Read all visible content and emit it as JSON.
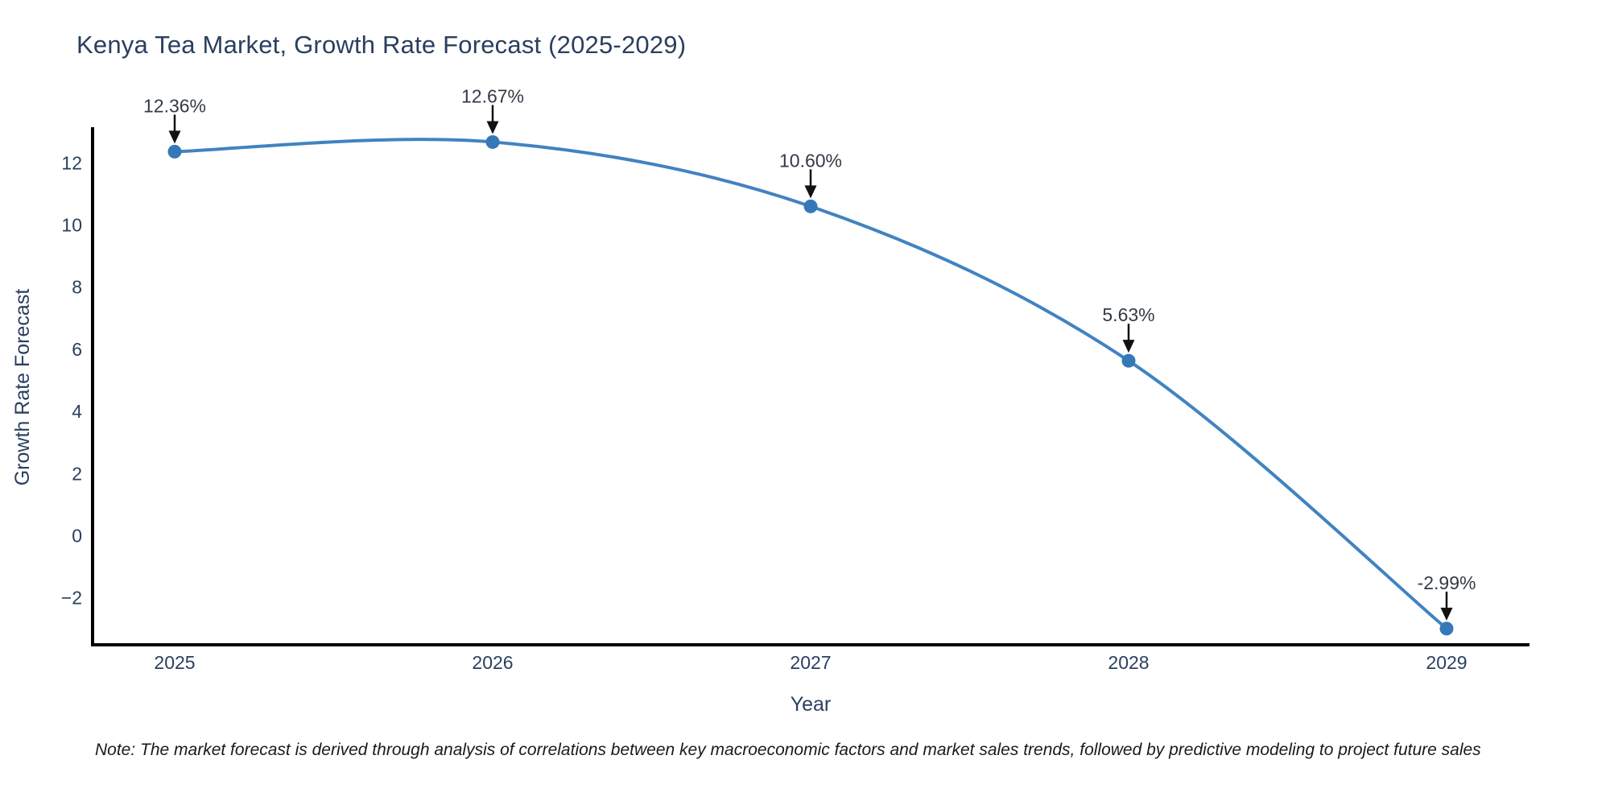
{
  "title": "Kenya Tea Market, Growth Rate Forecast (2025-2029)",
  "note": "Note: The market forecast is derived through analysis of correlations between key macroeconomic factors and market sales trends, followed by predictive modeling to project future sales",
  "chart_data": {
    "type": "line",
    "x": [
      2025,
      2026,
      2027,
      2028,
      2029
    ],
    "x_tick_labels": [
      "2025",
      "2026",
      "2027",
      "2028",
      "2029"
    ],
    "values": [
      12.36,
      12.67,
      10.6,
      5.63,
      -2.99
    ],
    "point_labels": [
      "12.36%",
      "12.67%",
      "10.60%",
      "5.63%",
      "-2.99%"
    ],
    "title": "Kenya Tea Market, Growth Rate Forecast (2025-2029)",
    "xlabel": "Year",
    "ylabel": "Growth Rate Forecast",
    "yticks": [
      12,
      10,
      8,
      6,
      4,
      2,
      0,
      -2
    ],
    "y_tick_labels": [
      "12",
      "10",
      "8",
      "6",
      "4",
      "2",
      "0",
      "−2"
    ],
    "ylim": [
      -3.55,
      13.15
    ],
    "smooth": true,
    "grid": false,
    "legend": false,
    "colors": {
      "line": "#4183c1",
      "marker": "#3578b7",
      "axis": "#000000",
      "text": "#2a3f5f",
      "annotation_text": "#333a45",
      "arrow": "#111111"
    }
  }
}
